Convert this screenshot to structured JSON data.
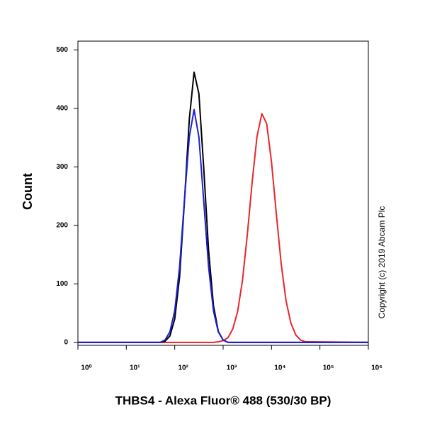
{
  "chart_data": {
    "type": "line",
    "x_label": "THBS4 - Alexa Fluor® 488 (530/30 BP)",
    "y_label": "Count",
    "annotation": "Copyright (c) 2019 Abcam Plc",
    "xscale": "log",
    "xlim": [
      1,
      1000000
    ],
    "xticks": [
      {
        "value": 1,
        "label": "10⁰"
      },
      {
        "value": 10,
        "label": "10¹"
      },
      {
        "value": 100,
        "label": "10²"
      },
      {
        "value": 1000,
        "label": "10³"
      },
      {
        "value": 10000,
        "label": "10⁴"
      },
      {
        "value": 100000,
        "label": "10⁵"
      },
      {
        "value": 1000000,
        "label": "10⁶"
      }
    ],
    "ylim": [
      -5,
      515
    ],
    "yticks": [
      0,
      100,
      200,
      300,
      400,
      500
    ],
    "x": [
      1,
      31.6,
      39.8,
      50.1,
      63.1,
      79.4,
      100,
      126,
      158,
      200,
      251,
      316,
      398,
      501,
      631,
      794,
      1000,
      1259,
      1585,
      1995,
      2512,
      3162,
      3981,
      5012,
      6310,
      7943,
      10000,
      12589,
      15849,
      19953,
      25119,
      31623,
      39811,
      50119,
      1000000
    ],
    "series": [
      {
        "color": "#e8262b",
        "values": [
          0,
          0,
          0,
          0,
          0,
          0,
          0,
          0,
          0,
          0,
          0,
          0,
          0,
          0,
          0,
          1,
          3,
          8,
          23,
          53,
          106,
          184,
          274,
          352,
          391,
          374,
          308,
          219,
          134,
          71,
          33,
          13,
          4,
          1,
          0
        ]
      },
      {
        "color": "#000000",
        "values": [
          0,
          0,
          0,
          0,
          2,
          11,
          40,
          112,
          238,
          381,
          462,
          425,
          297,
          157,
          63,
          19,
          4,
          0,
          0,
          0,
          0,
          0,
          0,
          0,
          0,
          0,
          0,
          0,
          0,
          0,
          0,
          0,
          0,
          0,
          0
        ]
      },
      {
        "color": "#1f1fd6",
        "values": [
          0,
          0,
          0,
          0,
          4,
          18,
          54,
          129,
          241,
          351,
          398,
          351,
          241,
          129,
          54,
          18,
          4,
          0,
          0,
          0,
          0,
          0,
          0,
          0,
          0,
          0,
          0,
          0,
          0,
          0,
          0,
          0,
          0,
          0,
          0
        ]
      }
    ]
  }
}
